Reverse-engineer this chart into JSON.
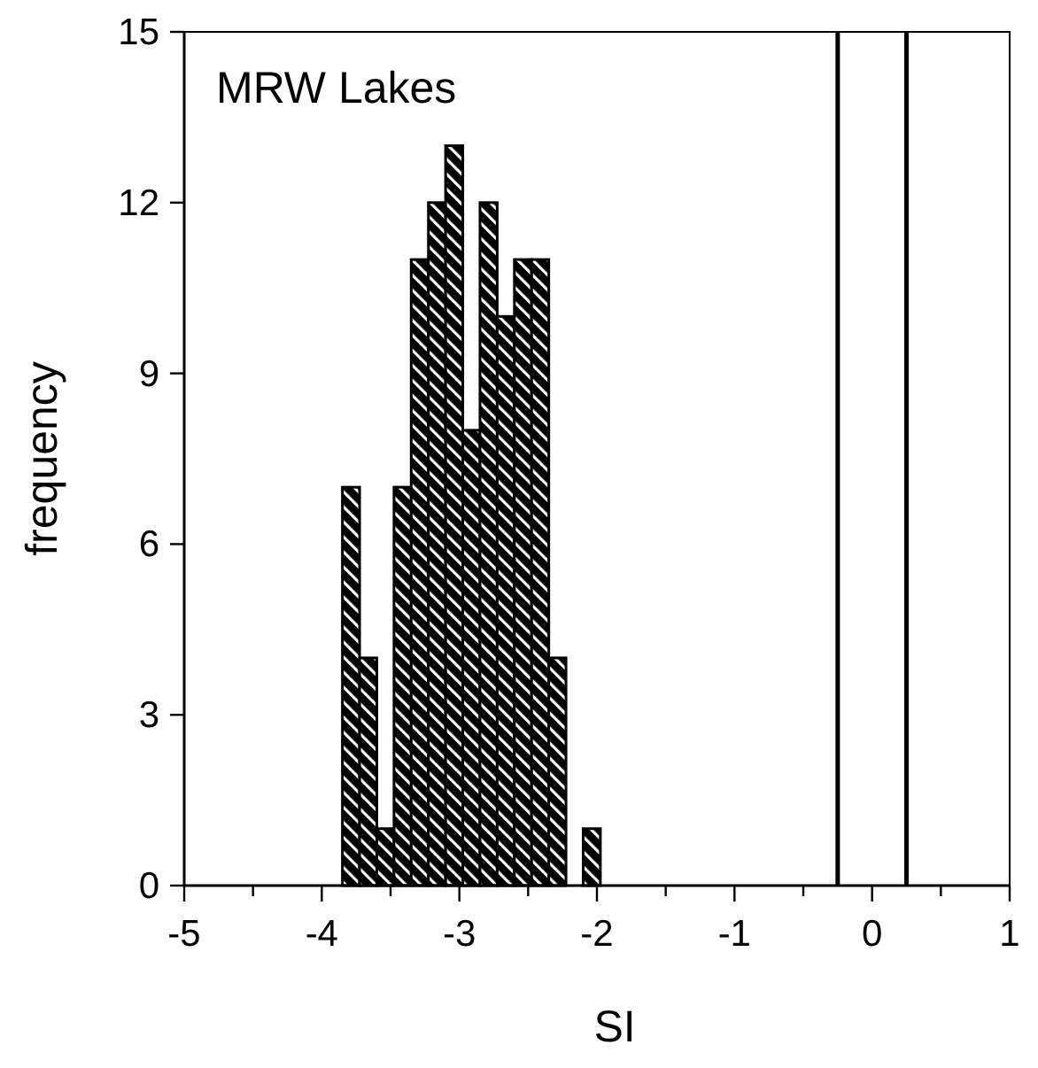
{
  "chart_data": {
    "type": "histogram",
    "title": "MRW Lakes",
    "xlabel": "SI",
    "ylabel": "frequency",
    "bins": [
      -3.85,
      -3.725,
      -3.6,
      -3.475,
      -3.35,
      -3.225,
      -3.1,
      -2.975,
      -2.85,
      -2.725,
      -2.6,
      -2.475,
      -2.35,
      -2.225,
      -2.1,
      -1.975
    ],
    "values": [
      7,
      4,
      1,
      7,
      11,
      12,
      13,
      8,
      12,
      10,
      11,
      11,
      4,
      0,
      1
    ],
    "color": "#000000",
    "xlim": [
      -5,
      1
    ],
    "xticks": [
      -5,
      {
        "value": -4.5,
        "label": null
      },
      -4,
      {
        "value": -3.5,
        "label": null
      },
      -3,
      {
        "value": -2.5,
        "label": null
      },
      -2,
      {
        "value": -1.5,
        "label": null
      },
      -1,
      {
        "value": -0.5,
        "label": null
      },
      0,
      {
        "value": 0.5,
        "label": null
      },
      1
    ],
    "ylim": [
      0,
      15
    ],
    "yticks": [
      0,
      3,
      6,
      9,
      12,
      15
    ],
    "ref_lines": [
      {
        "axis": "x",
        "value": -0.25,
        "color": "#000000"
      },
      {
        "axis": "x",
        "value": 0.25,
        "color": "#000000"
      }
    ],
    "grid": false
  }
}
